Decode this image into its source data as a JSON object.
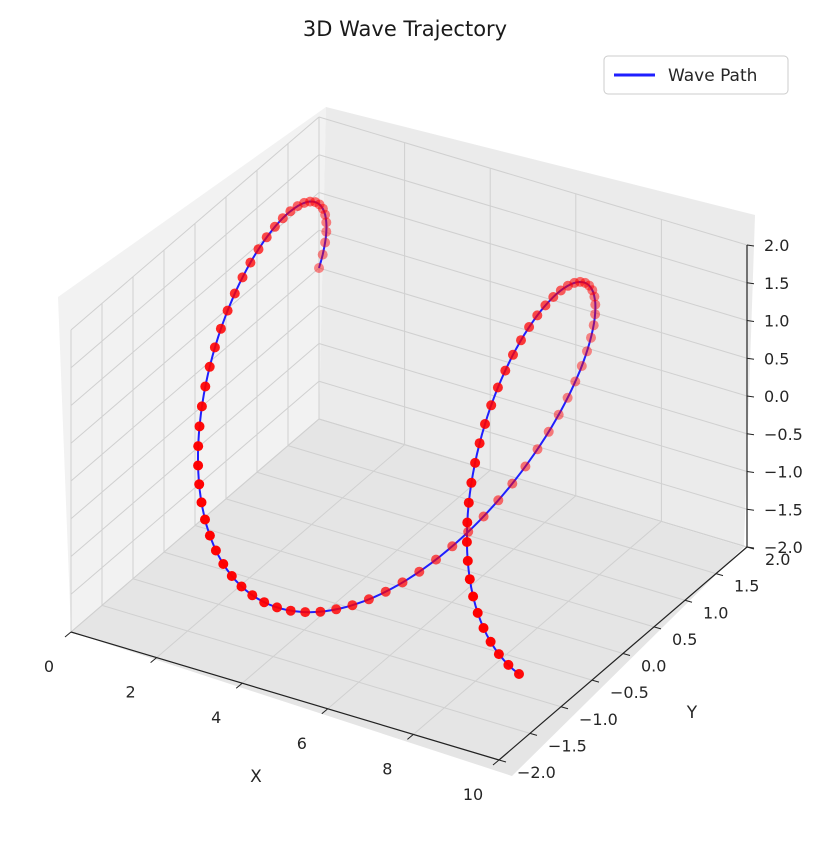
{
  "chart_data": {
    "type": "line3d",
    "title": "3D Wave Trajectory",
    "xlabel": "X",
    "ylabel": "Y",
    "zlabel": "",
    "xlim": [
      0,
      10
    ],
    "ylim": [
      -2,
      2
    ],
    "zlim": [
      -2,
      2
    ],
    "x_ticks": [
      "0",
      "2",
      "4",
      "6",
      "8",
      "10"
    ],
    "y_ticks": [
      "−2.0",
      "−1.5",
      "−1.0",
      "−0.5",
      "0.0",
      "0.5",
      "1.0",
      "1.5",
      "2.0"
    ],
    "z_ticks": [
      "−2.0",
      "−1.5",
      "−1.0",
      "−0.5",
      "0.0",
      "0.5",
      "1.0",
      "1.5",
      "2.0"
    ],
    "grid": true,
    "legend": {
      "position": "top-right",
      "entries": [
        "Wave Path"
      ]
    },
    "series": [
      {
        "name": "Wave Path",
        "kind": "line",
        "color": "#1f1fff",
        "equation": {
          "x": "t",
          "y": "2*cos(t)",
          "z": "2*sin(t)",
          "t_range": [
            0,
            10
          ],
          "points": 200
        }
      },
      {
        "kind": "scatter",
        "color": "#ff0000",
        "equation": {
          "x": "t",
          "y": "2*cos(t)",
          "z": "2*sin(t)",
          "t_range": [
            0,
            10
          ],
          "points": 100
        }
      }
    ]
  }
}
